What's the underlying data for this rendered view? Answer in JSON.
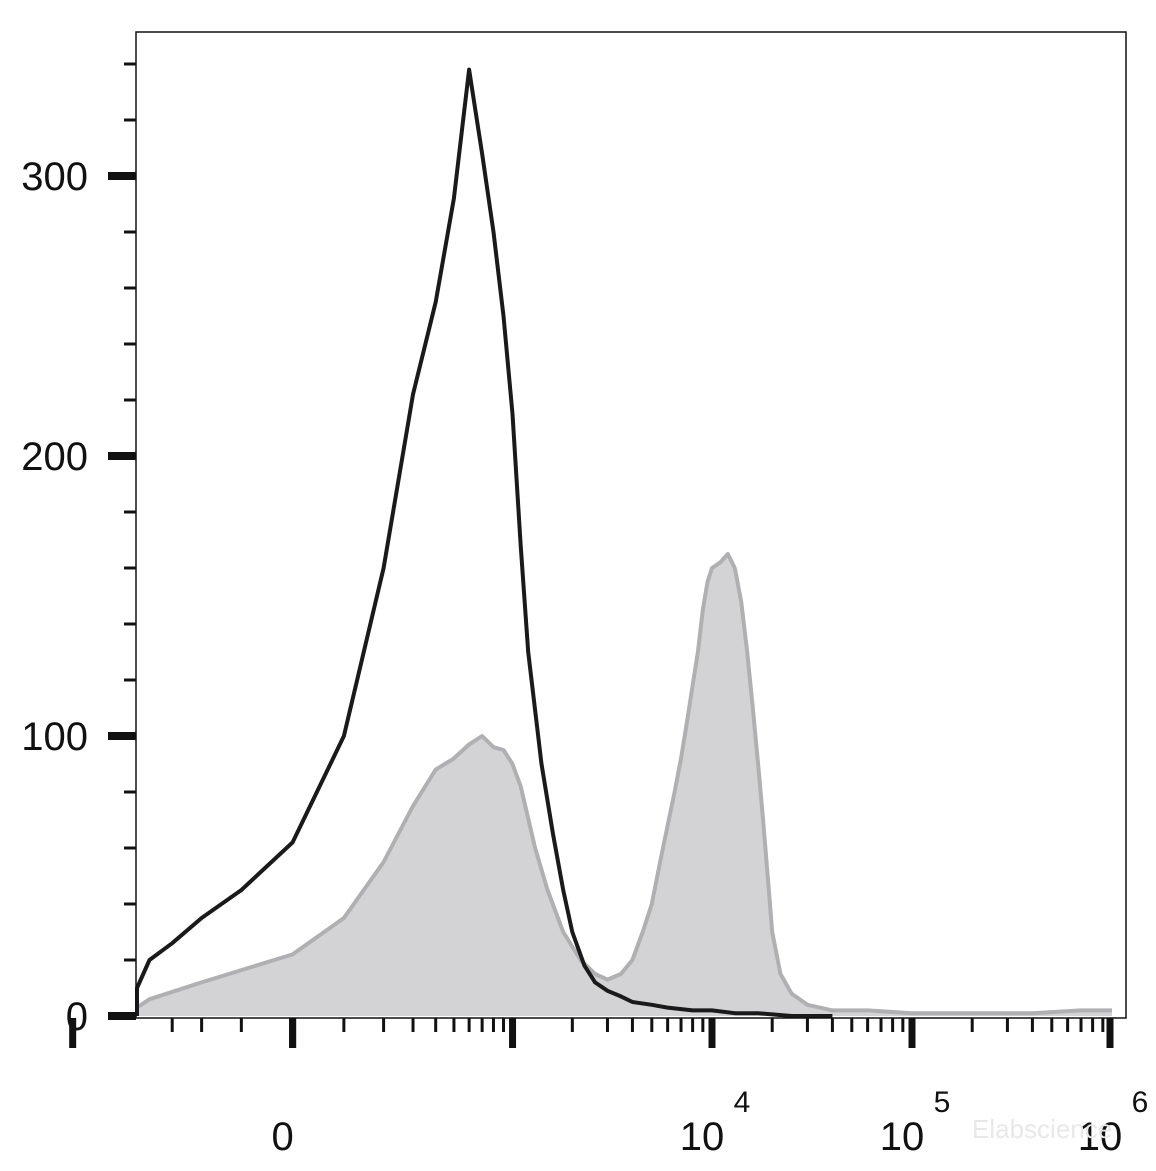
{
  "chart_data": {
    "type": "area",
    "title": "",
    "xlabel": "",
    "ylabel": "",
    "x_scale": "biexponential",
    "xlim": [
      -1500,
      1100000
    ],
    "ylim": [
      0,
      350
    ],
    "yticks": [
      {
        "value": 0,
        "label": "0"
      },
      {
        "value": 100,
        "label": "100"
      },
      {
        "value": 200,
        "label": "200"
      },
      {
        "value": 300,
        "label": "300"
      }
    ],
    "xticks": [
      {
        "value": 0,
        "label": "0",
        "base": "0",
        "exp": ""
      },
      {
        "value": 10000,
        "label": "10^4",
        "base": "10",
        "exp": "4"
      },
      {
        "value": 100000,
        "label": "10^5",
        "base": "10",
        "exp": "5"
      },
      {
        "value": 1000000,
        "label": "10^6",
        "base": "10",
        "exp": "6"
      }
    ],
    "grid": false,
    "legend": "none",
    "watermark": "Elabscience",
    "series": [
      {
        "style": "filled",
        "fill_color": "#d3d3d5",
        "line_color": "#b0b0b3",
        "x": [
          -1400,
          -1000,
          -700,
          -400,
          -200,
          0,
          100,
          200,
          300,
          400,
          500,
          600,
          700,
          800,
          900,
          1000,
          1100,
          1300,
          1500,
          1800,
          2200,
          2600,
          3000,
          3500,
          4000,
          4500,
          5000,
          5500,
          6000,
          6500,
          7000,
          7500,
          8000,
          8500,
          9000,
          9500,
          10000,
          11000,
          12000,
          13000,
          14000,
          15000,
          16000,
          17000,
          18000,
          19000,
          20000,
          22000,
          25000,
          30000,
          40000,
          60000,
          100000,
          200000,
          400000,
          700000,
          1000000
        ],
        "y": [
          0,
          1,
          3,
          6,
          12,
          22,
          35,
          55,
          75,
          88,
          92,
          97,
          100,
          96,
          95,
          90,
          82,
          60,
          45,
          30,
          20,
          15,
          13,
          15,
          20,
          30,
          40,
          55,
          68,
          80,
          92,
          105,
          118,
          130,
          145,
          155,
          160,
          162,
          165,
          160,
          148,
          130,
          110,
          90,
          70,
          50,
          30,
          15,
          8,
          4,
          2,
          2,
          1,
          1,
          1,
          2,
          2
        ]
      },
      {
        "style": "line",
        "line_color": "#1a1a1a",
        "x": [
          -1400,
          -1000,
          -700,
          -400,
          -300,
          -200,
          -100,
          0,
          100,
          200,
          300,
          400,
          500,
          600,
          700,
          800,
          900,
          1000,
          1100,
          1200,
          1400,
          1600,
          1800,
          2000,
          2300,
          2600,
          3000,
          3500,
          4000,
          5000,
          6000,
          8000,
          10000,
          13000,
          17000,
          25000,
          40000
        ],
        "y": [
          0,
          3,
          10,
          20,
          26,
          35,
          45,
          62,
          100,
          160,
          222,
          255,
          292,
          338,
          308,
          280,
          250,
          215,
          168,
          130,
          90,
          65,
          45,
          30,
          18,
          12,
          9,
          7,
          5,
          4,
          3,
          2,
          2,
          1,
          1,
          0,
          0
        ]
      }
    ]
  }
}
